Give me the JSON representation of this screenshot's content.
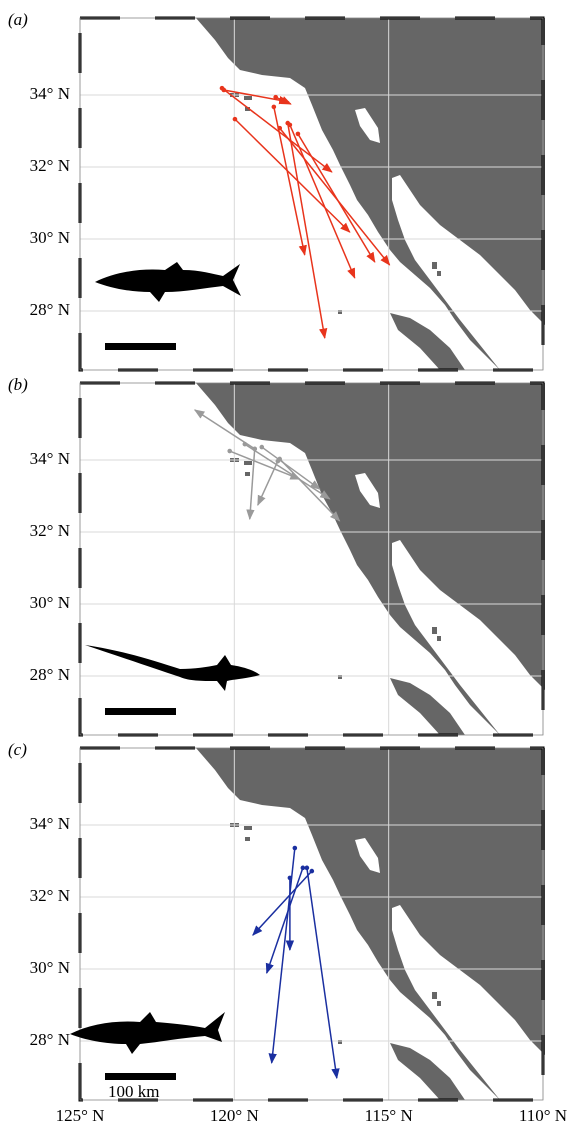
{
  "chart_data": [
    {
      "type": "arrows",
      "label": "(a)",
      "color": "#e8341c",
      "xlim": [
        -125,
        -110
      ],
      "ylim": [
        26.36,
        36.14
      ],
      "yticks": [
        {
          "value": 28,
          "label": "28° N"
        },
        {
          "value": 30,
          "label": "30° N"
        },
        {
          "value": 32,
          "label": "32° N"
        },
        {
          "value": 34,
          "label": "34° N"
        }
      ],
      "x0": [
        -120.4,
        -120.34,
        -119.98,
        -118.72,
        -118.53,
        -118.27,
        -118.2,
        -117.94,
        -118.66
      ],
      "y0": [
        34.19,
        34.14,
        33.33,
        33.67,
        33.08,
        33.22,
        33.17,
        32.92,
        33.94
      ],
      "x1": [
        -116.84,
        -118.24,
        -116.26,
        -117.72,
        -114.97,
        -117.07,
        -116.1,
        -115.45,
        -118.17
      ],
      "y1": [
        31.86,
        33.81,
        30.19,
        29.56,
        29.28,
        27.25,
        28.92,
        29.36,
        33.75
      ]
    },
    {
      "type": "arrows",
      "label": "(b)",
      "color": "#9a9a9a",
      "xlim": [
        -125,
        -110
      ],
      "ylim": [
        26.36,
        36.14
      ],
      "yticks": [
        {
          "value": 28,
          "label": "28° N"
        },
        {
          "value": 30,
          "label": "30° N"
        },
        {
          "value": 32,
          "label": "32° N"
        },
        {
          "value": 34,
          "label": "34° N"
        }
      ],
      "x0": [
        -119.34,
        -119.34,
        -119.11,
        -118.53,
        -118.59,
        -120.15,
        -119.66
      ],
      "y0": [
        34.31,
        34.31,
        34.36,
        34.03,
        33.97,
        34.25,
        34.44
      ],
      "x1": [
        -121.28,
        -119.5,
        -117.23,
        -116.59,
        -119.24,
        -117.88,
        -116.91
      ],
      "y1": [
        35.39,
        32.36,
        33.19,
        32.31,
        32.75,
        33.47,
        32.92
      ]
    },
    {
      "type": "arrows",
      "label": "(c)",
      "color": "#1a2fa0",
      "scale_label": "100 km",
      "xlim": [
        -125,
        -110
      ],
      "ylim": [
        26.36,
        36.14
      ],
      "xticks": [
        {
          "value": -125,
          "label": "125° N"
        },
        {
          "value": -120,
          "label": "120° N"
        },
        {
          "value": -115,
          "label": "115° N"
        },
        {
          "value": -110,
          "label": "110° N"
        }
      ],
      "yticks": [
        {
          "value": 28,
          "label": "28° N"
        },
        {
          "value": 30,
          "label": "30° N"
        },
        {
          "value": 32,
          "label": "32° N"
        },
        {
          "value": 34,
          "label": "34° N"
        }
      ],
      "x0": [
        -117.65,
        -118.04,
        -117.49,
        -117.78,
        -118.2
      ],
      "y0": [
        32.81,
        33.36,
        32.72,
        32.81,
        32.53
      ],
      "x1": [
        -116.68,
        -118.79,
        -119.4,
        -118.95,
        -118.2
      ],
      "y1": [
        26.97,
        27.39,
        30.94,
        29.89,
        30.53
      ]
    }
  ]
}
